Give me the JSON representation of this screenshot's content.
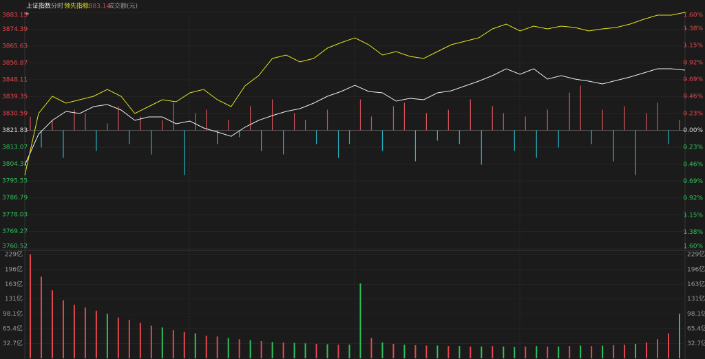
{
  "header": {
    "title": "上证指数",
    "mode": "分时",
    "indicator_label": "领先指标:",
    "indicator_value": "3883.14",
    "volume_label": "成交额(元)"
  },
  "chart_data": [
    {
      "type": "line",
      "ylim": [
        3760.52,
        3883.15
      ],
      "yticks": [
        3883.15,
        3874.39,
        3865.63,
        3856.87,
        3848.11,
        3839.35,
        3830.59,
        3821.83,
        3813.07,
        3804.31,
        3795.55,
        3786.79,
        3778.03,
        3769.27,
        3760.52
      ],
      "y2lim": [
        -1.6,
        1.6
      ],
      "y2ticks": [
        {
          "value": 1.6,
          "label": "1.60%"
        },
        {
          "value": 1.38,
          "label": "1.38%"
        },
        {
          "value": 1.15,
          "label": "1.15%"
        },
        {
          "value": 0.92,
          "label": "0.92%"
        },
        {
          "value": 0.69,
          "label": "0.69%"
        },
        {
          "value": 0.46,
          "label": "0.46%"
        },
        {
          "value": 0.23,
          "label": "0.23%"
        },
        {
          "value": 0,
          "label": "0.00%"
        },
        {
          "value": -0.23,
          "label": "0.23%"
        },
        {
          "value": -0.46,
          "label": "0.46%"
        },
        {
          "value": -0.69,
          "label": "0.69%"
        },
        {
          "value": -0.92,
          "label": "0.92%"
        },
        {
          "value": -1.15,
          "label": "1.15%"
        },
        {
          "value": -1.38,
          "label": "1.38%"
        },
        {
          "value": -1.6,
          "label": "1.60%"
        }
      ],
      "up_color": "#e5484d",
      "down_color": "#2fc25b",
      "flat_color": "#dddddd",
      "series": [
        {
          "type": "bar",
          "up_color": "#d9545a",
          "down_color": "#25b8c4",
          "values": [
            3828.98,
            3812.89,
            3827.19,
            3807.53,
            3832.56,
            3830.77,
            3811.1,
            3825.41,
            3834.34,
            3814.68,
            3828.98,
            3809.32,
            3827.19,
            3836.13,
            3798.59,
            3830.77,
            3832.56,
            3814.68,
            3827.19,
            3818.25,
            3834.34,
            3811.1,
            3837.92,
            3809.32,
            3830.77,
            3827.19,
            3814.68,
            3832.56,
            3807.53,
            3814.68,
            3837.92,
            3828.98,
            3811.1,
            3834.34,
            3836.13,
            3805.74,
            3830.77,
            3816.47,
            3832.56,
            3814.68,
            3837.92,
            3803.95,
            3834.34,
            3830.77,
            3811.1,
            3828.98,
            3807.53,
            3832.56,
            3812.89,
            3841.49,
            3845.07,
            3814.68,
            3832.56,
            3805.74,
            3834.34,
            3798.59,
            3830.77,
            3836.13,
            3814.68,
            3827.19
          ]
        },
        {
          "type": "line",
          "color": "#f0f0f0",
          "values": [
            3803.78,
            3819.87,
            3827.02,
            3831.67,
            3830.59,
            3834.17,
            3835.24,
            3832.38,
            3827.02,
            3828.8,
            3828.8,
            3825.23,
            3826.66,
            3823.09,
            3820.94,
            3818.73,
            3823.44,
            3827.02,
            3829.52,
            3831.67,
            3833.09,
            3835.95,
            3839.53,
            3842.03,
            3845.25,
            3842.03,
            3841.32,
            3837.03,
            3838.46,
            3837.74,
            3841.32,
            3842.39,
            3844.89,
            3847.4,
            3850.26,
            3853.83,
            3850.97,
            3853.83,
            3848.47,
            3850.26,
            3848.47,
            3847.4,
            3845.97,
            3847.76,
            3849.54,
            3851.69,
            3853.83,
            3853.83,
            3853.12
          ]
        },
        {
          "type": "line",
          "color": "#e6e61e",
          "values": [
            3798.42,
            3830.59,
            3839.53,
            3835.95,
            3837.74,
            3839.53,
            3843.11,
            3839.53,
            3830.59,
            3834.17,
            3837.74,
            3836.67,
            3841.32,
            3843.11,
            3837.74,
            3834.17,
            3844.89,
            3850.26,
            3859.19,
            3860.98,
            3857.41,
            3859.19,
            3864.56,
            3867.42,
            3869.92,
            3866.34,
            3860.98,
            3862.77,
            3860.27,
            3859.19,
            3862.77,
            3866.34,
            3868.13,
            3869.92,
            3874.56,
            3877.07,
            3873.49,
            3875.99,
            3874.56,
            3875.99,
            3875.28,
            3873.49,
            3874.56,
            3875.28,
            3877.07,
            3879.57,
            3881.72,
            3881.72,
            3883.15
          ]
        }
      ]
    },
    {
      "type": "bar",
      "ylim": [
        0,
        229
      ],
      "yticks": [
        {
          "value": 229,
          "label": "229亿"
        },
        {
          "value": 196,
          "label": "196亿"
        },
        {
          "value": 163,
          "label": "163亿"
        },
        {
          "value": 131,
          "label": "131亿"
        },
        {
          "value": 98.1,
          "label": "98.1亿"
        },
        {
          "value": 65.4,
          "label": "65.4亿"
        },
        {
          "value": 32.7,
          "label": "32.7亿"
        }
      ],
      "values": [
        229,
        180,
        150,
        128,
        118,
        112,
        105,
        98,
        90,
        85,
        78,
        72,
        68,
        62,
        58,
        55,
        50,
        48,
        45,
        42,
        40,
        38,
        36,
        35,
        34,
        33,
        32,
        31,
        30,
        30,
        165,
        45,
        35,
        32,
        30,
        29,
        28,
        28,
        27,
        27,
        26,
        26,
        27,
        26,
        25,
        26,
        27,
        26,
        26,
        27,
        28,
        27,
        28,
        29,
        30,
        32,
        35,
        42,
        55,
        98
      ],
      "colors": [
        "#e5484d",
        "#e5484d",
        "#e5484d",
        "#e5484d",
        "#e5484d",
        "#e5484d",
        "#e5484d",
        "#2fc25b",
        "#e5484d",
        "#e5484d",
        "#e5484d",
        "#e5484d",
        "#2fc25b",
        "#e5484d",
        "#e5484d",
        "#2fc25b",
        "#e5484d",
        "#e5484d",
        "#2fc25b",
        "#e5484d",
        "#2fc25b",
        "#e5484d",
        "#2fc25b",
        "#e5484d",
        "#2fc25b",
        "#2fc25b",
        "#e5484d",
        "#2fc25b",
        "#e5484d",
        "#2fc25b",
        "#2fc25b",
        "#e5484d",
        "#2fc25b",
        "#e5484d",
        "#2fc25b",
        "#e5484d",
        "#e5484d",
        "#2fc25b",
        "#e5484d",
        "#2fc25b",
        "#e5484d",
        "#2fc25b",
        "#e5484d",
        "#2fc25b",
        "#2fc25b",
        "#e5484d",
        "#2fc25b",
        "#e5484d",
        "#2fc25b",
        "#e5484d",
        "#2fc25b",
        "#e5484d",
        "#2fc25b",
        "#e5484d",
        "#e5484d",
        "#2fc25b",
        "#e5484d",
        "#e5484d",
        "#e5484d",
        "#2fc25b"
      ]
    }
  ]
}
